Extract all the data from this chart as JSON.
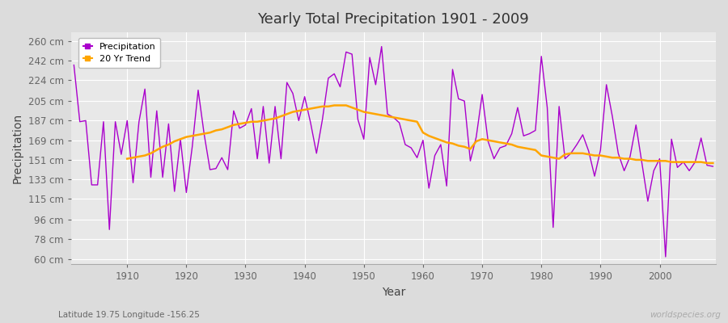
{
  "title": "Yearly Total Precipitation 1901 - 2009",
  "xlabel": "Year",
  "ylabel": "Precipitation",
  "subtitle": "Latitude 19.75 Longitude -156.25",
  "watermark": "worldspecies.org",
  "years": [
    1901,
    1902,
    1903,
    1904,
    1905,
    1906,
    1907,
    1908,
    1909,
    1910,
    1911,
    1912,
    1913,
    1914,
    1915,
    1916,
    1917,
    1918,
    1919,
    1920,
    1921,
    1922,
    1923,
    1924,
    1925,
    1926,
    1927,
    1928,
    1929,
    1930,
    1931,
    1932,
    1933,
    1934,
    1935,
    1936,
    1937,
    1938,
    1939,
    1940,
    1941,
    1942,
    1943,
    1944,
    1945,
    1946,
    1947,
    1948,
    1949,
    1950,
    1951,
    1952,
    1953,
    1954,
    1955,
    1956,
    1957,
    1958,
    1959,
    1960,
    1961,
    1962,
    1963,
    1964,
    1965,
    1966,
    1967,
    1968,
    1969,
    1970,
    1971,
    1972,
    1973,
    1974,
    1975,
    1976,
    1977,
    1978,
    1979,
    1980,
    1981,
    1982,
    1983,
    1984,
    1985,
    1986,
    1987,
    1988,
    1989,
    1990,
    1991,
    1992,
    1993,
    1994,
    1995,
    1996,
    1997,
    1998,
    1999,
    2000,
    2001,
    2002,
    2003,
    2004,
    2005,
    2006,
    2007,
    2008,
    2009
  ],
  "precipitation": [
    238,
    186,
    187,
    128,
    128,
    186,
    87,
    186,
    156,
    187,
    130,
    186,
    216,
    135,
    196,
    135,
    184,
    122,
    170,
    121,
    163,
    215,
    175,
    142,
    143,
    153,
    142,
    196,
    180,
    183,
    198,
    152,
    200,
    148,
    200,
    152,
    222,
    212,
    187,
    209,
    185,
    157,
    188,
    226,
    230,
    218,
    250,
    248,
    188,
    170,
    245,
    220,
    255,
    193,
    190,
    185,
    165,
    162,
    153,
    169,
    125,
    155,
    165,
    127,
    234,
    207,
    205,
    150,
    172,
    211,
    168,
    152,
    162,
    164,
    175,
    199,
    173,
    175,
    178,
    246,
    199,
    89,
    200,
    152,
    157,
    165,
    174,
    159,
    136,
    160,
    220,
    191,
    157,
    141,
    154,
    183,
    148,
    113,
    141,
    152,
    62,
    170,
    144,
    149,
    141,
    149,
    171,
    146,
    145
  ],
  "trend_years": [
    1910,
    1911,
    1912,
    1913,
    1914,
    1915,
    1916,
    1917,
    1918,
    1919,
    1920,
    1921,
    1922,
    1923,
    1924,
    1925,
    1926,
    1927,
    1928,
    1929,
    1930,
    1931,
    1932,
    1933,
    1934,
    1935,
    1936,
    1937,
    1938,
    1939,
    1940,
    1941,
    1942,
    1943,
    1944,
    1945,
    1946,
    1947,
    1948,
    1949,
    1950,
    1951,
    1952,
    1953,
    1954,
    1955,
    1956,
    1957,
    1958,
    1959,
    1960,
    1961,
    1962,
    1963,
    1964,
    1965,
    1966,
    1967,
    1968,
    1969,
    1970,
    1971,
    1972,
    1973,
    1974,
    1975,
    1976,
    1977,
    1978,
    1979,
    1980,
    1981,
    1982,
    1983,
    1984,
    1985,
    1986,
    1987,
    1988,
    1989,
    1990,
    1991,
    1992,
    1993,
    1994,
    1995,
    1996,
    1997,
    1998,
    1999,
    2000,
    2001,
    2002,
    2003,
    2004,
    2005,
    2006,
    2007,
    2008,
    2009
  ],
  "trend": [
    152,
    153,
    154,
    155,
    157,
    160,
    163,
    165,
    168,
    170,
    172,
    173,
    174,
    175,
    176,
    178,
    179,
    181,
    183,
    184,
    185,
    186,
    186,
    187,
    188,
    189,
    191,
    193,
    195,
    196,
    197,
    198,
    199,
    200,
    200,
    201,
    201,
    201,
    199,
    197,
    195,
    194,
    193,
    192,
    191,
    190,
    189,
    188,
    187,
    186,
    176,
    173,
    171,
    169,
    167,
    166,
    164,
    163,
    161,
    168,
    170,
    169,
    168,
    167,
    166,
    165,
    163,
    162,
    161,
    160,
    155,
    154,
    153,
    152,
    156,
    157,
    157,
    157,
    156,
    155,
    155,
    154,
    153,
    153,
    152,
    152,
    151,
    151,
    150,
    150,
    150,
    150,
    149,
    149,
    149,
    149,
    149,
    149,
    148,
    148
  ],
  "precip_color": "#AA00CC",
  "trend_color": "#FFA500",
  "bg_color": "#DCDCDC",
  "plot_bg_color": "#E8E8E8",
  "grid_color": "#FFFFFF",
  "yticks": [
    60,
    78,
    96,
    115,
    133,
    151,
    169,
    187,
    205,
    224,
    242,
    260
  ],
  "ytick_labels": [
    "60 cm",
    "78 cm",
    "96 cm",
    "115 cm",
    "133 cm",
    "151 cm",
    "169 cm",
    "187 cm",
    "205 cm",
    "224 cm",
    "242 cm",
    "260 cm"
  ],
  "xticks": [
    1910,
    1920,
    1930,
    1940,
    1950,
    1960,
    1970,
    1980,
    1990,
    2000
  ],
  "ylim": [
    55,
    268
  ],
  "xlim": [
    1900.5,
    2009.5
  ]
}
